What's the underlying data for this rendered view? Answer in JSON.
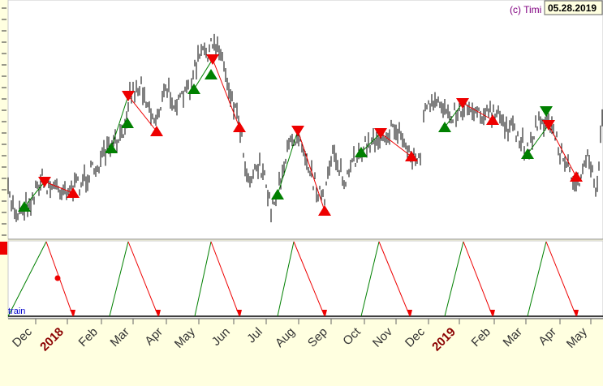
{
  "watermark": "(c) Timi",
  "date": "05.28.2019",
  "indicator_label": "train",
  "x_axis": {
    "labels": [
      "Dec",
      "2018",
      "Feb",
      "Mar",
      "Apr",
      "May",
      "Jun",
      "Jul",
      "Aug",
      "Sep",
      "Oct",
      "Nov",
      "Dec",
      "2019",
      "Feb",
      "Mar",
      "Apr",
      "May"
    ]
  }
}
